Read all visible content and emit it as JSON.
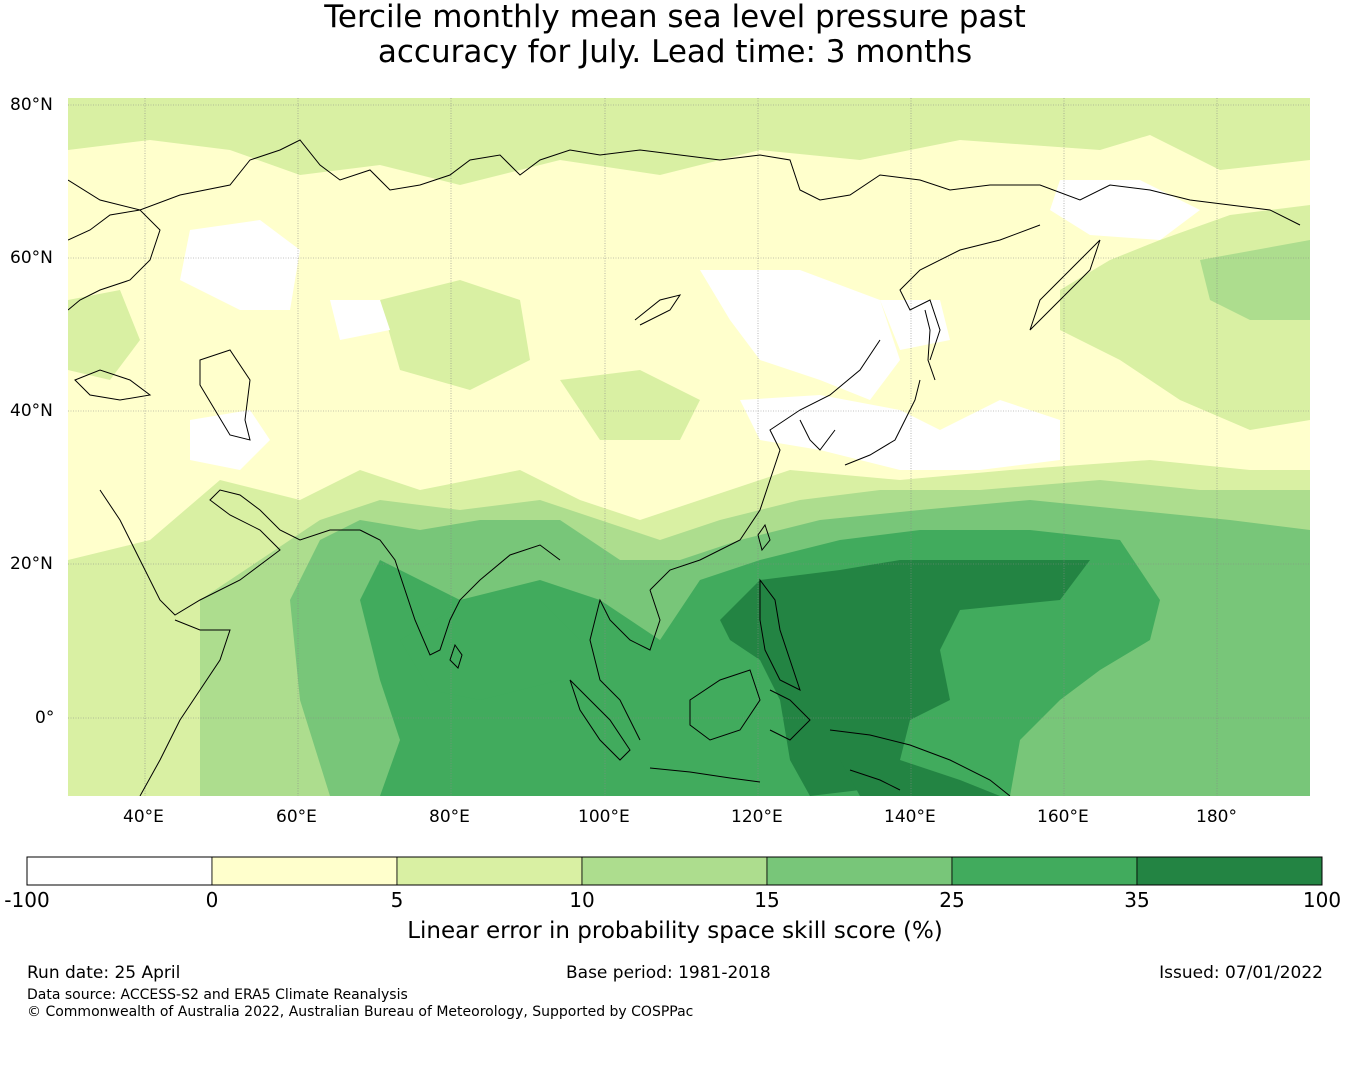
{
  "title": {
    "line1": "Tercile monthly mean sea level pressure past",
    "line2": "accuracy for July. Lead time: 3 months"
  },
  "map": {
    "lat_labels": [
      "80°N",
      "60°N",
      "40°N",
      "20°N",
      "0°"
    ],
    "lon_labels": [
      "40°E",
      "60°E",
      "80°E",
      "100°E",
      "120°E",
      "140°E",
      "160°E",
      "180°"
    ],
    "extent": {
      "lon": [
        30,
        192
      ],
      "lat": [
        -10,
        81
      ]
    }
  },
  "colorbar": {
    "tick_labels": [
      "-100",
      "0",
      "5",
      "10",
      "15",
      "25",
      "35",
      "100"
    ],
    "colors": [
      "#ffffff",
      "#ffffcc",
      "#d9f0a3",
      "#addd8e",
      "#78c679",
      "#41ab5d",
      "#238443"
    ],
    "title": "Linear error in probability space skill score (%)"
  },
  "footer": {
    "run_date": "Run date: 25 April",
    "base_period": "Base period: 1981-2018",
    "issued": "Issued: 07/01/2022",
    "data_source": "Data source: ACCESS-S2 and ERA5 Climate Reanalysis",
    "copyright": "© Commonwealth of Australia 2022, Australian Bureau of Meteorology, Supported by COSPPac"
  }
}
